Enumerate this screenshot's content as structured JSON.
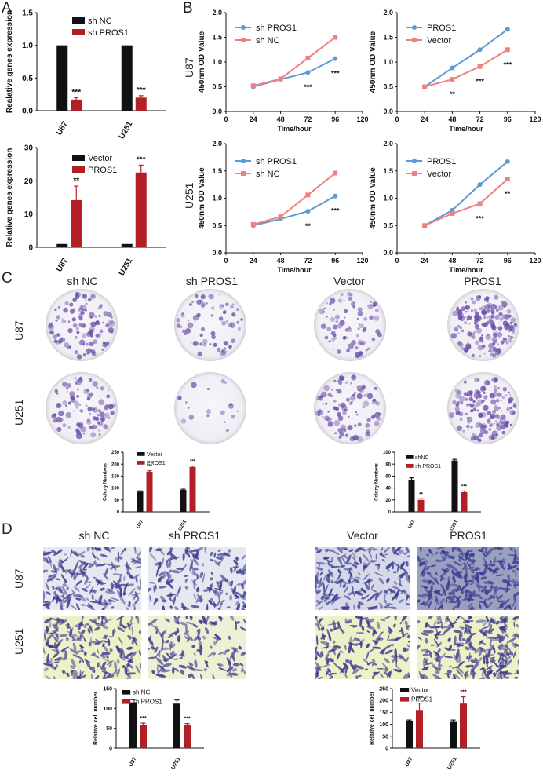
{
  "panels": {
    "A": "A",
    "B": "B",
    "C": "C",
    "D": "D"
  },
  "colors": {
    "black": "#111111",
    "red": "#b22026",
    "blue": "#5b9bd5",
    "pink": "#f08080",
    "stain": "#6a4ea8"
  },
  "panelB_row_labels": [
    "U87",
    "U251"
  ],
  "panelC": {
    "col_labels": [
      "sh NC",
      "sh PROS1",
      "Vector",
      "PROS1"
    ],
    "row_labels": [
      "U87",
      "U251"
    ],
    "dish_density": [
      [
        0.6,
        0.35,
        0.45,
        0.95
      ],
      [
        0.5,
        0.05,
        0.55,
        0.9
      ]
    ]
  },
  "panelD": {
    "col_labels": [
      "sh NC",
      "sh PROS1",
      "Vector",
      "PROS1"
    ],
    "row_labels": [
      "U87",
      "U251"
    ],
    "field_density": [
      [
        0.7,
        0.55,
        0.75,
        0.95
      ],
      [
        0.75,
        0.45,
        0.6,
        0.95
      ]
    ]
  },
  "chart_data": [
    {
      "id": "A1",
      "type": "bar",
      "categories": [
        "U87",
        "U251"
      ],
      "series": [
        {
          "name": "sh NC",
          "values": [
            1.0,
            1.0
          ],
          "err": [
            0,
            0
          ]
        },
        {
          "name": "sh PROS1",
          "values": [
            0.17,
            0.2
          ],
          "err": [
            0.03,
            0.03
          ]
        }
      ],
      "ylabel": "Realative genes expression",
      "ylim": [
        0,
        1.5
      ],
      "yticks": [
        "0.0",
        "0.5",
        "1.0",
        "1.5"
      ],
      "annotations": [
        "***",
        "***"
      ]
    },
    {
      "id": "A2",
      "type": "bar",
      "categories": [
        "U87",
        "U251"
      ],
      "series": [
        {
          "name": "Vector",
          "values": [
            1.0,
            1.0
          ],
          "err": [
            0,
            0
          ]
        },
        {
          "name": "PROS1",
          "values": [
            14.2,
            22.5
          ],
          "err": [
            4.2,
            2.2
          ]
        }
      ],
      "ylabel": "Relative genes expression",
      "ylim": [
        0,
        30
      ],
      "yticks": [
        "0",
        "10",
        "20",
        "30"
      ],
      "annotations": [
        "**",
        "***"
      ]
    },
    {
      "id": "B1",
      "type": "line",
      "x": [
        24,
        48,
        72,
        96
      ],
      "series": [
        {
          "name": "sh PROS1",
          "values": [
            0.5,
            0.65,
            0.79,
            1.07
          ]
        },
        {
          "name": "sh NC",
          "values": [
            0.52,
            0.66,
            1.08,
            1.5
          ]
        }
      ],
      "xlabel": "Time/hour",
      "ylabel": "450nm OD Value",
      "xlim": [
        0,
        120
      ],
      "ylim": [
        0,
        2.0
      ],
      "xticks": [
        "0",
        "24",
        "48",
        "72",
        "96",
        "120"
      ],
      "yticks": [
        "0.0",
        "0.5",
        "1.0",
        "1.5",
        "2.0"
      ],
      "annotations": [
        {
          "x": 72,
          "text": "***"
        },
        {
          "x": 96,
          "text": "***"
        }
      ]
    },
    {
      "id": "B2",
      "type": "line",
      "x": [
        24,
        48,
        72,
        96
      ],
      "series": [
        {
          "name": "PROS1",
          "values": [
            0.5,
            0.88,
            1.25,
            1.66
          ]
        },
        {
          "name": "Vector",
          "values": [
            0.5,
            0.65,
            0.91,
            1.25
          ]
        }
      ],
      "xlabel": "Time/hour",
      "ylabel": "450nm OD Value",
      "xlim": [
        0,
        120
      ],
      "ylim": [
        0,
        2.0
      ],
      "xticks": [
        "0",
        "24",
        "48",
        "72",
        "96",
        "120"
      ],
      "yticks": [
        "0.0",
        "0.5",
        "1.0",
        "1.5",
        "2.0"
      ],
      "annotations": [
        {
          "x": 48,
          "text": "**"
        },
        {
          "x": 72,
          "text": "***"
        },
        {
          "x": 96,
          "text": "***"
        }
      ]
    },
    {
      "id": "B3",
      "type": "line",
      "x": [
        24,
        48,
        72,
        96
      ],
      "series": [
        {
          "name": "sh PROS1",
          "values": [
            0.5,
            0.62,
            0.76,
            1.04
          ]
        },
        {
          "name": "sh NC",
          "values": [
            0.52,
            0.66,
            1.06,
            1.46
          ]
        }
      ],
      "xlabel": "Time/hour",
      "ylabel": "450nm OD Value",
      "xlim": [
        0,
        120
      ],
      "ylim": [
        0,
        2.0
      ],
      "xticks": [
        "0",
        "24",
        "48",
        "72",
        "96",
        "120"
      ],
      "yticks": [
        "0.0",
        "0.5",
        "1.0",
        "1.5",
        "2.0"
      ],
      "annotations": [
        {
          "x": 72,
          "text": "**"
        },
        {
          "x": 96,
          "text": "***"
        }
      ]
    },
    {
      "id": "B4",
      "type": "line",
      "x": [
        24,
        48,
        72,
        96
      ],
      "series": [
        {
          "name": "PROS1",
          "values": [
            0.5,
            0.78,
            1.25,
            1.67
          ]
        },
        {
          "name": "Vector",
          "values": [
            0.5,
            0.72,
            0.9,
            1.35
          ]
        }
      ],
      "xlabel": "Time/hour",
      "ylabel": "450nm OD Value",
      "xlim": [
        0,
        120
      ],
      "ylim": [
        0,
        2.0
      ],
      "xticks": [
        "0",
        "24",
        "48",
        "72",
        "96",
        "120"
      ],
      "yticks": [
        "0.0",
        "0.5",
        "1.0",
        "1.5",
        "2.0"
      ],
      "annotations": [
        {
          "x": 72,
          "text": "***"
        },
        {
          "x": 96,
          "text": "**"
        }
      ]
    },
    {
      "id": "C1",
      "type": "bar",
      "categories": [
        "U87",
        "U251"
      ],
      "series": [
        {
          "name": "Vector",
          "values": [
            85,
            92
          ],
          "err": [
            3,
            3
          ]
        },
        {
          "name": "PROS1",
          "values": [
            168,
            188
          ],
          "err": [
            4,
            4
          ]
        }
      ],
      "ylabel": "Colony Numbers",
      "ylim": [
        0,
        250
      ],
      "yticks": [
        "0",
        "50",
        "100",
        "150",
        "200",
        "250"
      ],
      "annotations": [
        "***",
        "***"
      ]
    },
    {
      "id": "C2",
      "type": "bar",
      "categories": [
        "U87",
        "U251"
      ],
      "series": [
        {
          "name": "shNC",
          "values": [
            54,
            86
          ],
          "err": [
            3,
            2
          ]
        },
        {
          "name": "sh PROS1",
          "values": [
            20,
            33
          ],
          "err": [
            2,
            2
          ]
        }
      ],
      "ylabel": "Colony Numbers",
      "ylim": [
        0,
        100
      ],
      "yticks": [
        "0",
        "20",
        "40",
        "60",
        "80",
        "100"
      ],
      "annotations": [
        "**",
        "***"
      ]
    },
    {
      "id": "D1",
      "type": "bar",
      "categories": [
        "U87",
        "U251"
      ],
      "series": [
        {
          "name": "sh NC",
          "values": [
            115,
            112
          ],
          "err": [
            7,
            9
          ]
        },
        {
          "name": "sh PROS1",
          "values": [
            58,
            59
          ],
          "err": [
            5,
            3
          ]
        }
      ],
      "ylabel": "Relative cell number",
      "ylim": [
        0,
        150
      ],
      "yticks": [
        "0",
        "50",
        "100",
        "150"
      ],
      "annotations": [
        "***",
        "***"
      ]
    },
    {
      "id": "D2",
      "type": "bar",
      "categories": [
        "U87",
        "U251"
      ],
      "series": [
        {
          "name": "Vector",
          "values": [
            113,
            110
          ],
          "err": [
            5,
            8
          ]
        },
        {
          "name": "PROS1",
          "values": [
            157,
            187
          ],
          "err": [
            32,
            28
          ]
        }
      ],
      "ylabel": "Relative cell number",
      "ylim": [
        0,
        250
      ],
      "yticks": [
        "0",
        "50",
        "100",
        "150",
        "200",
        "250"
      ],
      "annotations": [
        "***",
        "***"
      ]
    }
  ]
}
